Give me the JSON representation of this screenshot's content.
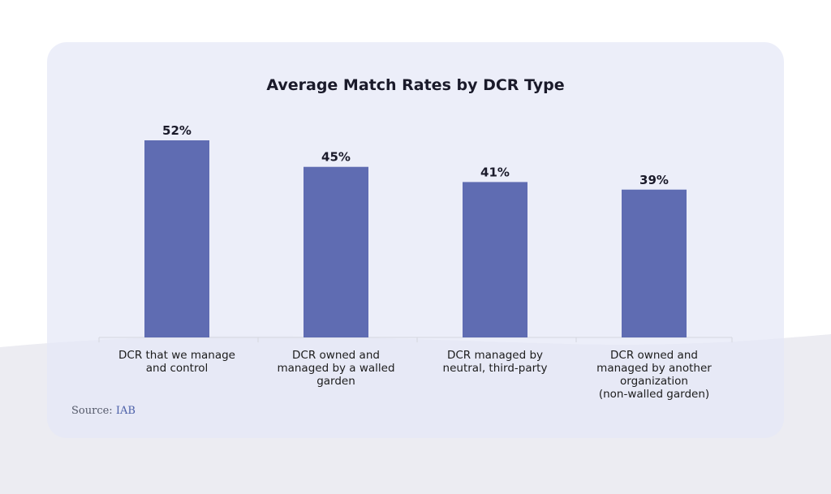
{
  "chart_data": {
    "type": "bar",
    "title": "Average Match Rates by DCR Type",
    "categories": [
      [
        "DCR that we manage",
        "and control"
      ],
      [
        "DCR owned and",
        "managed by a walled",
        "garden"
      ],
      [
        "DCR managed by",
        "neutral, third-party"
      ],
      [
        "DCR owned and",
        "managed by another",
        "organization",
        "(non-walled garden)"
      ]
    ],
    "values": [
      52,
      45,
      41,
      39
    ],
    "value_labels": [
      "52%",
      "45%",
      "41%",
      "39%"
    ],
    "unit": "%",
    "ylim": [
      0,
      52
    ],
    "grid": false,
    "legend": "none",
    "bar_color": "#5f6cb2"
  },
  "source": {
    "prefix": "Source:",
    "name": "IAB"
  }
}
